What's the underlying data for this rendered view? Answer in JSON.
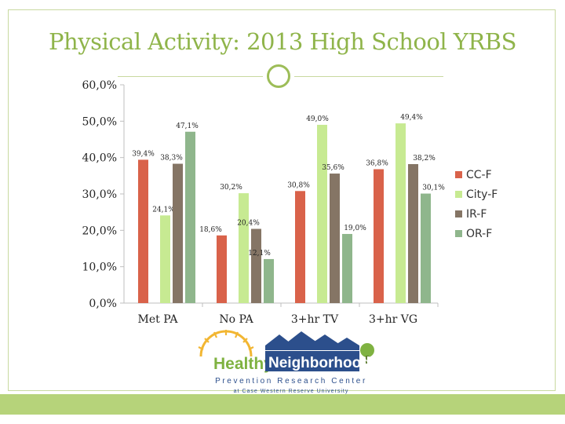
{
  "title": "Physical Activity: 2013 High School YRBS",
  "chart_data": {
    "type": "bar",
    "categories": [
      "Met PA",
      "No PA",
      "3+hr TV",
      "3+hr VG"
    ],
    "series": [
      {
        "name": "CC-F",
        "color": "#d9624a",
        "values": [
          39.4,
          18.6,
          30.8,
          36.8
        ],
        "labels": [
          "39,4%",
          "18,6%",
          "30,8%",
          "36,8%"
        ]
      },
      {
        "name": "City-F",
        "color": "#c7ea92",
        "values": [
          24.1,
          30.2,
          49.0,
          49.4
        ],
        "labels": [
          "24,1%",
          "30,2%",
          "49,0%",
          "49,4%"
        ]
      },
      {
        "name": "IR-F",
        "color": "#857565",
        "values": [
          38.3,
          20.4,
          35.6,
          38.2
        ],
        "labels": [
          "38,3%",
          "20,4%",
          "35,6%",
          "38,2%"
        ]
      },
      {
        "name": "OR-F",
        "color": "#8fb68c",
        "values": [
          47.1,
          12.1,
          19.0,
          30.1
        ],
        "labels": [
          "47,1%",
          "12,1%",
          "19,0%",
          "30,1%"
        ]
      }
    ],
    "yticks": [
      "0,0%",
      "10,0%",
      "20,0%",
      "30,0%",
      "40,0%",
      "50,0%",
      "60,0%"
    ],
    "ylim": [
      0,
      60
    ],
    "grid": false,
    "legend_position": "right"
  },
  "logo": {
    "word1": "Healthy",
    "word2": "Neighborhoods",
    "line1": "Prevention Research Center",
    "line2": "at Case Western Reserve University",
    "colors": {
      "green": "#7fb241",
      "blue": "#2c4f8c",
      "sun": "#f2b632"
    }
  }
}
